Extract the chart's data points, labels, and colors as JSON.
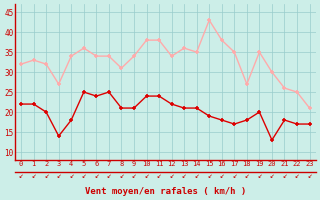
{
  "x": [
    0,
    1,
    2,
    3,
    4,
    5,
    6,
    7,
    8,
    9,
    10,
    11,
    12,
    13,
    14,
    15,
    16,
    17,
    18,
    19,
    20,
    21,
    22,
    23
  ],
  "wind_avg": [
    22,
    22,
    20,
    14,
    18,
    25,
    24,
    25,
    21,
    21,
    24,
    24,
    22,
    21,
    21,
    19,
    18,
    17,
    18,
    20,
    13,
    18,
    17,
    17
  ],
  "wind_gust": [
    32,
    33,
    32,
    27,
    34,
    36,
    34,
    34,
    31,
    34,
    38,
    38,
    34,
    36,
    35,
    43,
    38,
    35,
    27,
    35,
    30,
    26,
    25,
    21
  ],
  "avg_color": "#dd0000",
  "gust_color": "#ffaaaa",
  "bg_color": "#cceee8",
  "grid_color": "#99cccc",
  "xlabel": "Vent moyen/en rafales ( km/h )",
  "xlabel_color": "#cc0000",
  "tick_color": "#cc0000",
  "ylabel_ticks": [
    10,
    15,
    20,
    25,
    30,
    35,
    40,
    45
  ],
  "ylim": [
    8,
    47
  ],
  "xlim": [
    -0.5,
    23.5
  ],
  "arrow_color": "#cc0000",
  "spine_color": "#cc0000"
}
